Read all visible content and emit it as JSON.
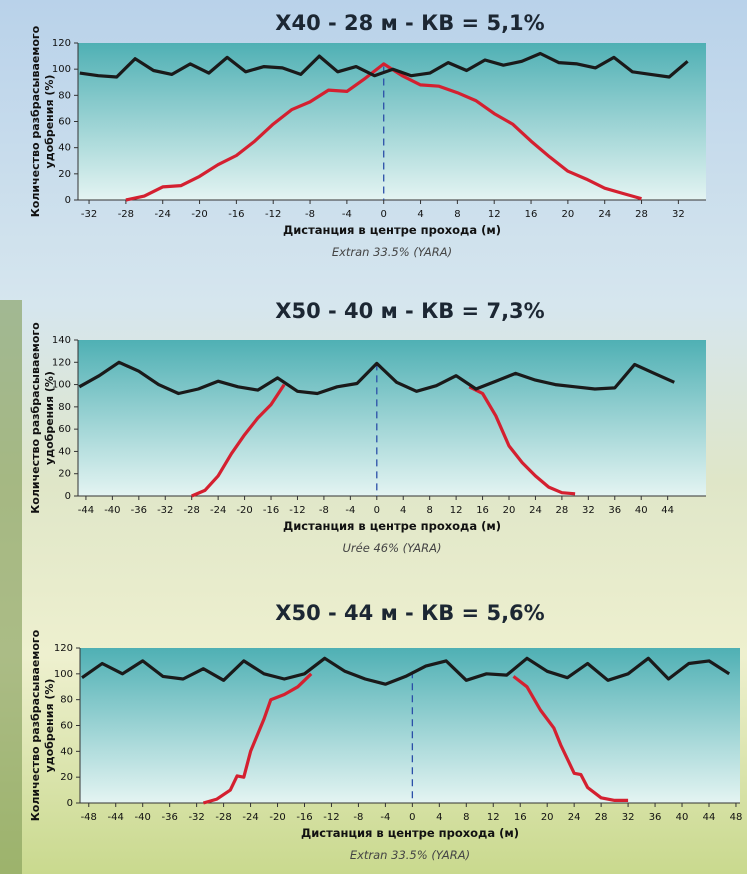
{
  "chart_data": [
    {
      "type": "line",
      "title": "X40 - 28 м - КВ = 5,1%",
      "ylabel": [
        "Количество разбрасываемого",
        "удобрения (%)"
      ],
      "xlabel": "Дистанция в центре прохода (м)",
      "caption": "Extran 33.5% (YARA)",
      "xlim": [
        -33.2,
        35
      ],
      "ylim": [
        0,
        120
      ],
      "xticks": [
        -32,
        -28,
        -24,
        -20,
        -16,
        -12,
        -8,
        -4,
        0,
        4,
        8,
        12,
        16,
        20,
        24,
        28,
        32
      ],
      "yticks": [
        0,
        20,
        40,
        60,
        80,
        100,
        120
      ],
      "reference_line": 0,
      "series": [
        {
          "color": "#1a1a1a",
          "x": [
            -33,
            -31,
            -29,
            -27,
            -25,
            -23,
            -21,
            -19,
            -17,
            -15,
            -13,
            -11,
            -9,
            -7,
            -5,
            -3,
            -1,
            1,
            3,
            5,
            7,
            9,
            11,
            13,
            15,
            17,
            19,
            21,
            23,
            25,
            27,
            29,
            31,
            33
          ],
          "values": [
            97,
            95,
            94,
            108,
            99,
            96,
            104,
            97,
            109,
            98,
            102,
            101,
            96,
            110,
            98,
            102,
            95,
            100,
            95,
            97,
            105,
            99,
            107,
            103,
            106,
            112,
            105,
            104,
            101,
            109,
            98,
            96,
            94,
            106
          ]
        },
        {
          "color": "#d42030",
          "x": [
            -28,
            -26,
            -24,
            -22,
            -20,
            -18,
            -16,
            -14,
            -12,
            -10,
            -8,
            -6,
            -4,
            -2,
            0,
            2,
            4,
            6,
            8,
            10,
            12,
            14,
            16,
            18,
            20,
            22,
            24,
            26,
            28
          ],
          "values": [
            0,
            3,
            10,
            11,
            18,
            27,
            34,
            45,
            58,
            69,
            75,
            84,
            83,
            93,
            104,
            95,
            88,
            87,
            82,
            76,
            66,
            58,
            45,
            33,
            22,
            16,
            9,
            5,
            1
          ]
        }
      ]
    },
    {
      "type": "line",
      "title": "X50 - 40 м - КВ = 7,3%",
      "ylabel": [
        "Количество разбрасываемого",
        "удобрения (%)"
      ],
      "xlabel": "Дистанция в центре прохода (м)",
      "caption": "Urée 46% (YARA)",
      "xlim": [
        -45.2,
        49.8
      ],
      "ylim": [
        0,
        140
      ],
      "xticks": [
        -44,
        -40,
        -36,
        -32,
        -28,
        -24,
        -20,
        -16,
        -12,
        -8,
        -4,
        0,
        4,
        8,
        12,
        16,
        20,
        24,
        28,
        32,
        36,
        40,
        44
      ],
      "yticks": [
        0,
        20,
        40,
        60,
        80,
        100,
        120,
        140
      ],
      "reference_line": 0,
      "series": [
        {
          "color": "#1a1a1a",
          "x": [
            -45,
            -42,
            -39,
            -36,
            -33,
            -30,
            -27,
            -24,
            -21,
            -18,
            -15,
            -12,
            -9,
            -6,
            -3,
            0,
            3,
            6,
            9,
            12,
            15,
            18,
            21,
            24,
            27,
            30,
            33,
            36,
            39,
            42,
            45
          ],
          "values": [
            98,
            108,
            120,
            112,
            100,
            92,
            96,
            103,
            98,
            95,
            106,
            94,
            92,
            98,
            101,
            119,
            102,
            94,
            99,
            108,
            96,
            103,
            110,
            104,
            100,
            98,
            96,
            97,
            118,
            110,
            102
          ]
        },
        {
          "color": "#d42030",
          "x": [
            -28,
            -26,
            -24,
            -22,
            -20,
            -18,
            -16,
            -14,
            0,
            14,
            16,
            18,
            20,
            22,
            24,
            26,
            28,
            30
          ],
          "values": [
            0,
            5,
            18,
            38,
            55,
            70,
            82,
            100,
            null,
            98,
            92,
            72,
            45,
            30,
            18,
            8,
            3,
            2
          ]
        }
      ]
    },
    {
      "type": "line",
      "title": "X50 - 44 м - КВ = 5,6%",
      "ylabel": [
        "Количество разбрасываемого",
        "удобрения (%)"
      ],
      "xlabel": "Дистанция в центре прохода (м)",
      "caption": "Extran 33.5% (YARA)",
      "xlim": [
        -49.3,
        48.6
      ],
      "ylim": [
        0,
        120
      ],
      "xticks": [
        -48,
        -44,
        -40,
        -36,
        -32,
        -28,
        -24,
        -20,
        -16,
        -12,
        -8,
        -4,
        0,
        4,
        8,
        12,
        16,
        20,
        24,
        28,
        32,
        36,
        40,
        44,
        48
      ],
      "yticks": [
        0,
        20,
        40,
        60,
        80,
        100,
        120
      ],
      "reference_line": 0,
      "series": [
        {
          "color": "#1a1a1a",
          "x": [
            -49,
            -46,
            -43,
            -40,
            -37,
            -34,
            -31,
            -28,
            -25,
            -22,
            -19,
            -16,
            -13,
            -10,
            -7,
            -4,
            -1,
            2,
            5,
            8,
            11,
            14,
            17,
            20,
            23,
            26,
            29,
            32,
            35,
            38,
            41,
            44,
            47
          ],
          "values": [
            97,
            108,
            100,
            110,
            98,
            96,
            104,
            95,
            110,
            100,
            96,
            100,
            112,
            102,
            96,
            92,
            98,
            106,
            110,
            95,
            100,
            99,
            112,
            102,
            97,
            108,
            95,
            100,
            112,
            96,
            108,
            110,
            100
          ]
        },
        {
          "color": "#d42030",
          "x": [
            -31,
            -29,
            -27,
            -26,
            -25,
            -24,
            -22,
            -21,
            -19,
            -17,
            -15,
            0,
            15,
            17,
            19,
            21,
            22,
            24,
            25,
            26,
            28,
            30,
            32
          ],
          "values": [
            0,
            3,
            10,
            21,
            20,
            40,
            65,
            80,
            84,
            90,
            100,
            null,
            98,
            90,
            72,
            58,
            45,
            23,
            22,
            12,
            4,
            2,
            2
          ]
        }
      ]
    }
  ]
}
